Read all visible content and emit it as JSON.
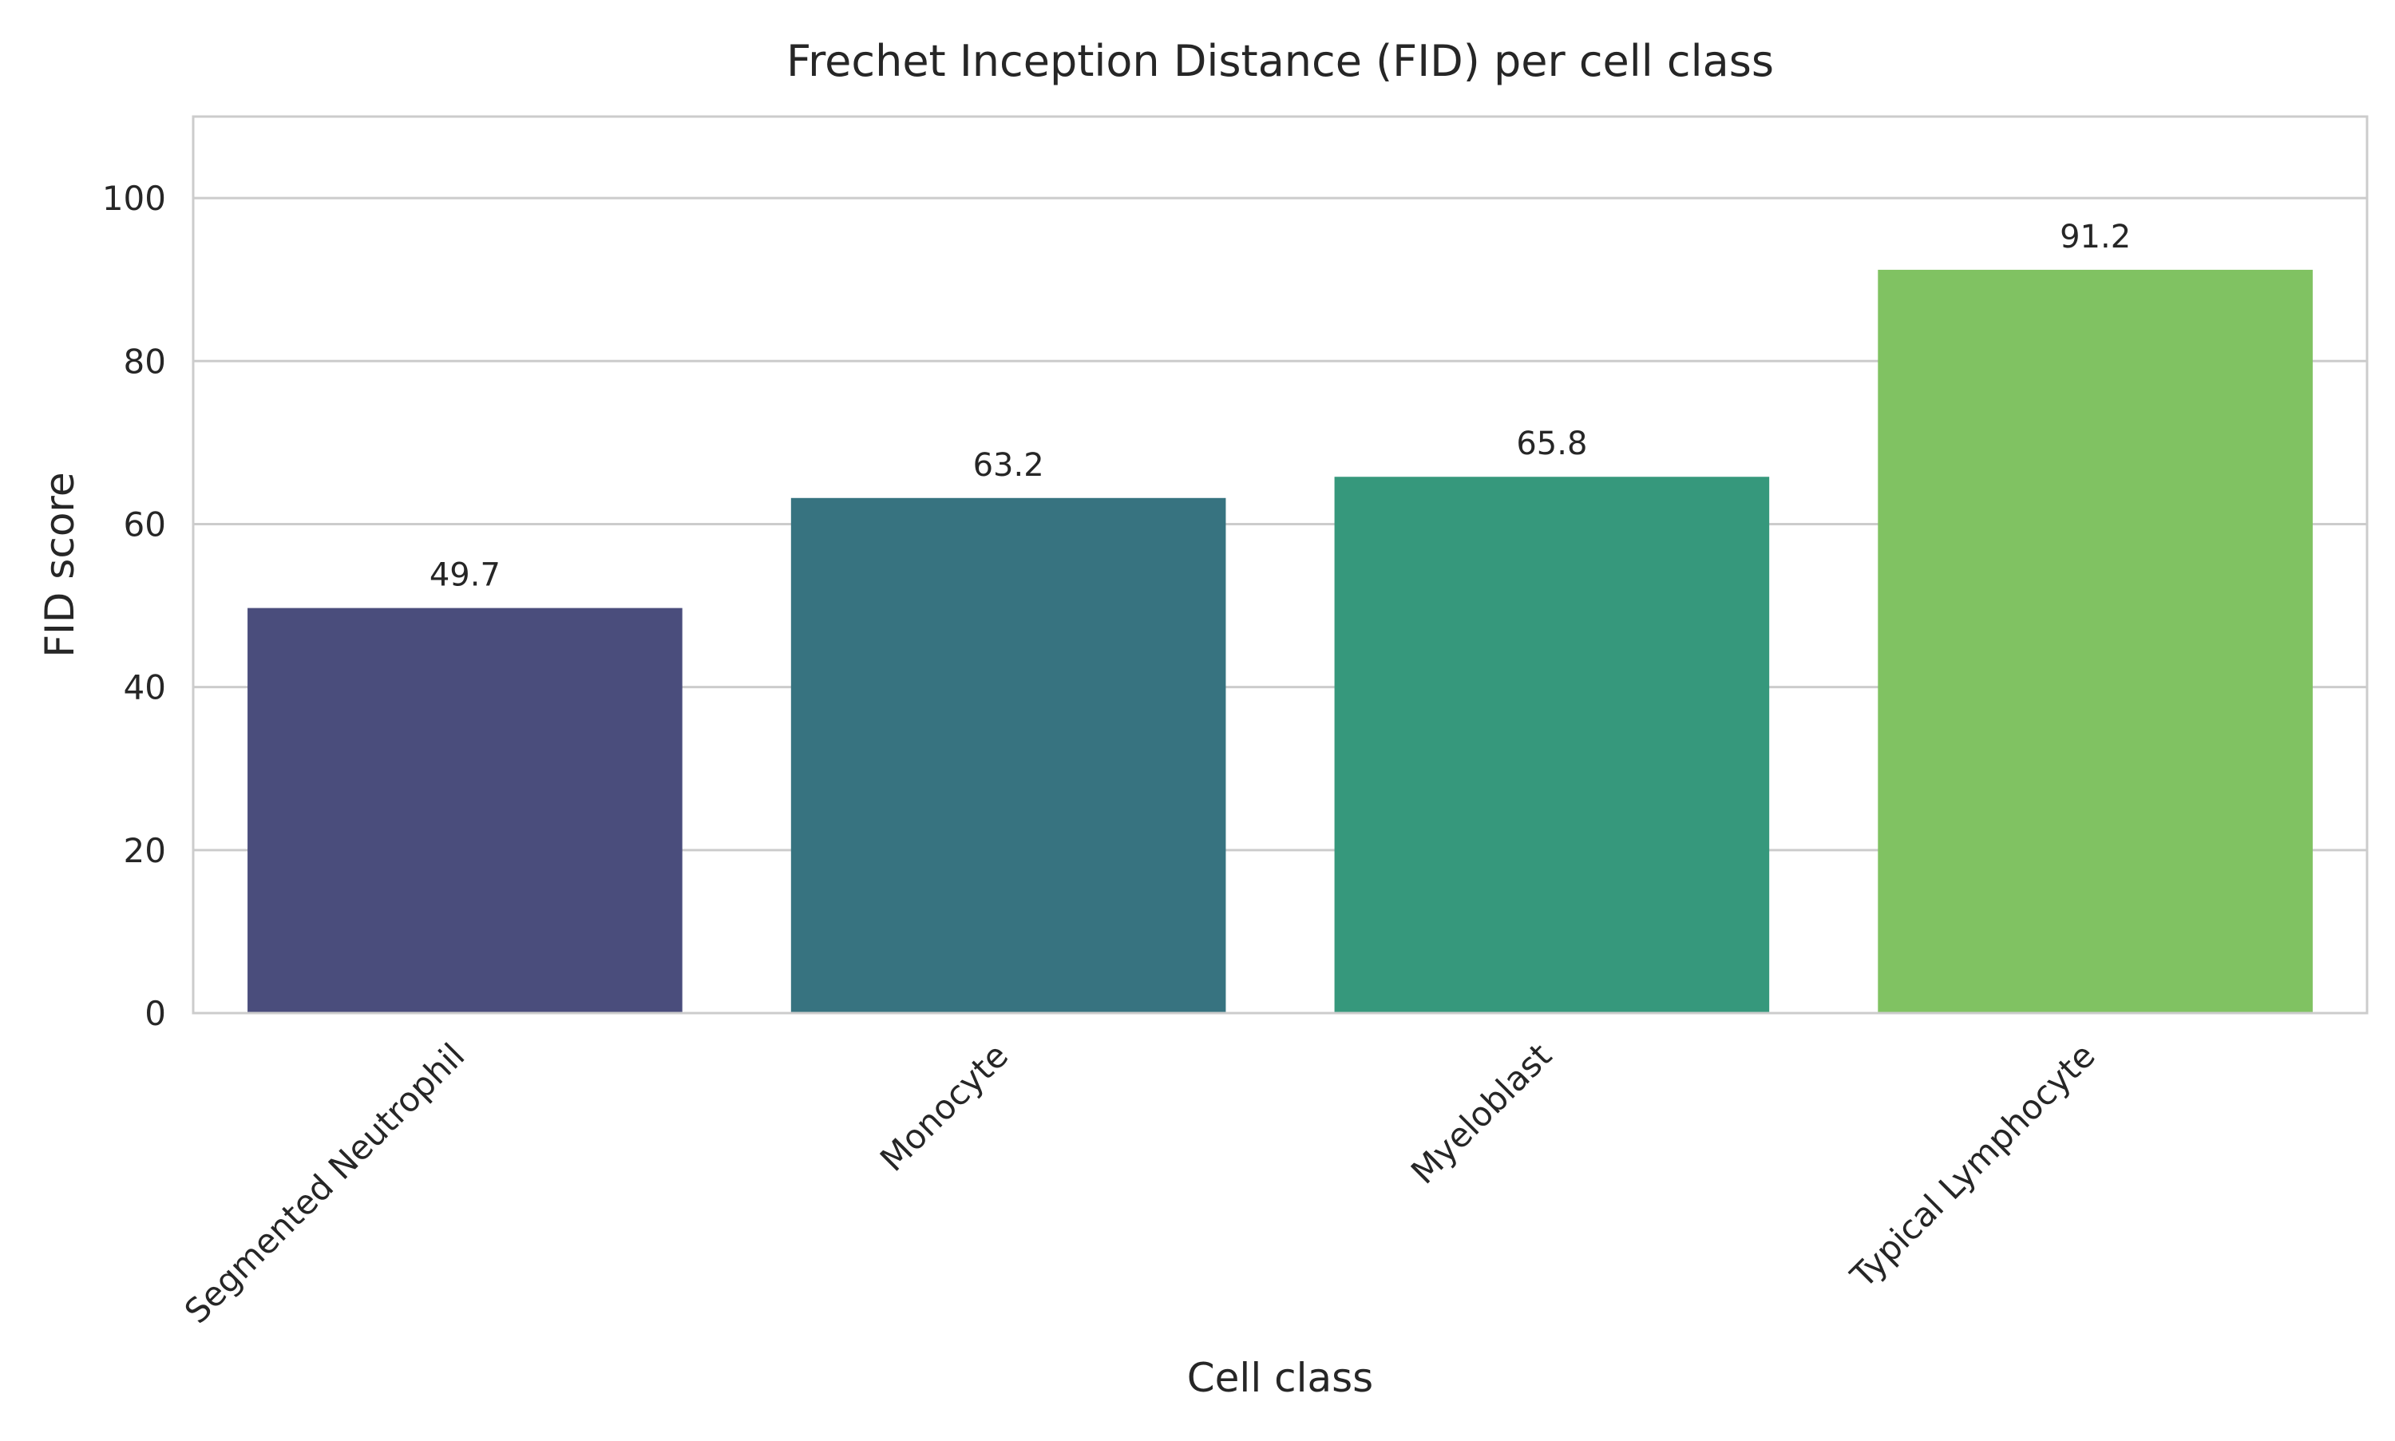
{
  "chart_data": {
    "type": "bar",
    "title": "Frechet Inception Distance (FID) per cell class",
    "xlabel": "Cell class",
    "ylabel": "FID score",
    "categories": [
      "Segmented Neutrophil",
      "Monocyte",
      "Myeloblast",
      "Typical Lymphocyte"
    ],
    "values": [
      49.7,
      63.2,
      65.8,
      91.2
    ],
    "data_labels": [
      "49.7",
      "63.2",
      "65.8",
      "91.2"
    ],
    "colors": [
      "#4a4d7c",
      "#377380",
      "#36987c",
      "#80c262"
    ],
    "ylim": [
      0,
      110
    ],
    "yticks": [
      0,
      20,
      40,
      60,
      80,
      100
    ],
    "ytick_labels": [
      "0",
      "20",
      "40",
      "60",
      "80",
      "100"
    ],
    "grid": "y",
    "legend": "none",
    "grid_color": "#cccccc",
    "frame_color": "#cccccc"
  }
}
